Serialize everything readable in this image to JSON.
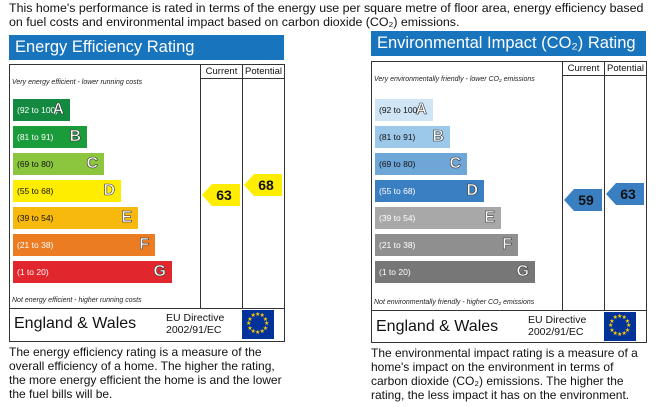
{
  "intro_text": "This home's performance is rated in terms of the energy use per square metre of floor area, energy efficiency based on fuel costs and environmental impact based on carbon dioxide (CO₂) emissions.",
  "energy": {
    "title": "Energy Efficiency Rating",
    "col_current": "Current",
    "col_potential": "Potential",
    "top_note": "Very energy efficient - lower running costs",
    "bottom_note": "Not energy efficient - higher running costs",
    "bands": [
      {
        "range": "(92 to 100)",
        "letter": "A",
        "color": "#138a3f"
      },
      {
        "range": "(81 to 91)",
        "letter": "B",
        "color": "#1b9c3b"
      },
      {
        "range": "(69 to 80)",
        "letter": "C",
        "color": "#8cc63e"
      },
      {
        "range": "(55 to 68)",
        "letter": "D",
        "color": "#ffed00"
      },
      {
        "range": "(39 to 54)",
        "letter": "E",
        "color": "#f7b90e"
      },
      {
        "range": "(21 to 38)",
        "letter": "F",
        "color": "#ec7c22"
      },
      {
        "range": "(1 to 20)",
        "letter": "G",
        "color": "#e1262d"
      }
    ],
    "current": "63",
    "potential": "68",
    "arrow_color": "#ffed00",
    "region": "England & Wales",
    "directive": "EU Directive",
    "directive_code": "2002/91/EC",
    "description": "The energy efficiency rating is a measure of the overall efficiency of a home. The higher the rating, the more energy efficient the home is and the lower the fuel bills will be."
  },
  "environment": {
    "title": "Environmental Impact (CO₂) Rating",
    "col_current": "Current",
    "col_potential": "Potential",
    "top_note": "Very environmentally friendly - lower CO₂ emissions",
    "bottom_note": "Not environmentally friendly - higher CO₂ emissions",
    "bands": [
      {
        "range": "(92 to 100)",
        "letter": "A",
        "color": "#cfe5f6"
      },
      {
        "range": "(81 to 91)",
        "letter": "B",
        "color": "#9cc8ea"
      },
      {
        "range": "(69 to 80)",
        "letter": "C",
        "color": "#6ea6d8"
      },
      {
        "range": "(55 to 68)",
        "letter": "D",
        "color": "#3a7fc1"
      },
      {
        "range": "(39 to 54)",
        "letter": "E",
        "color": "#a8a8a8"
      },
      {
        "range": "(21 to 38)",
        "letter": "F",
        "color": "#8f8f8f"
      },
      {
        "range": "(1 to 20)",
        "letter": "G",
        "color": "#777777"
      }
    ],
    "current": "59",
    "potential": "63",
    "arrow_color": "#3a7fc1",
    "region": "England & Wales",
    "directive": "EU Directive",
    "directive_code": "2002/91/EC",
    "description": "The environmental impact rating is a measure of a home's impact on the environment in terms of carbon dioxide (CO₂) emissions. The higher the rating, the less impact it has on the environment."
  }
}
